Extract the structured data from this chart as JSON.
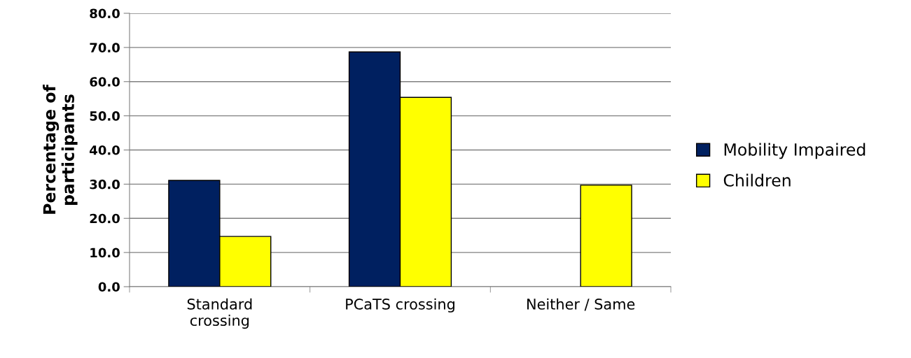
{
  "chart_data": {
    "type": "bar",
    "ylabel": "Percentage of\nparticipants",
    "categories": [
      "Standard\ncrossing",
      "PCaTS crossing",
      "Neither / Same"
    ],
    "series": [
      {
        "name": "Mobility Impaired",
        "color": "#002060",
        "values": [
          31.1,
          68.7,
          null
        ]
      },
      {
        "name": "Children",
        "color": "#ffff00",
        "values": [
          14.7,
          55.4,
          29.7
        ]
      }
    ],
    "ylim": [
      0,
      80
    ],
    "yticks": [
      {
        "value": 0,
        "label": "0.0"
      },
      {
        "value": 10,
        "label": "10.0"
      },
      {
        "value": 20,
        "label": "20.0"
      },
      {
        "value": 30,
        "label": "30.0"
      },
      {
        "value": 40,
        "label": "40.0"
      },
      {
        "value": 50,
        "label": "50.0"
      },
      {
        "value": 60,
        "label": "60.0"
      },
      {
        "value": 70,
        "label": "70.0"
      },
      {
        "value": 80,
        "label": "80.0"
      }
    ],
    "grid": "y",
    "legend": "right"
  }
}
